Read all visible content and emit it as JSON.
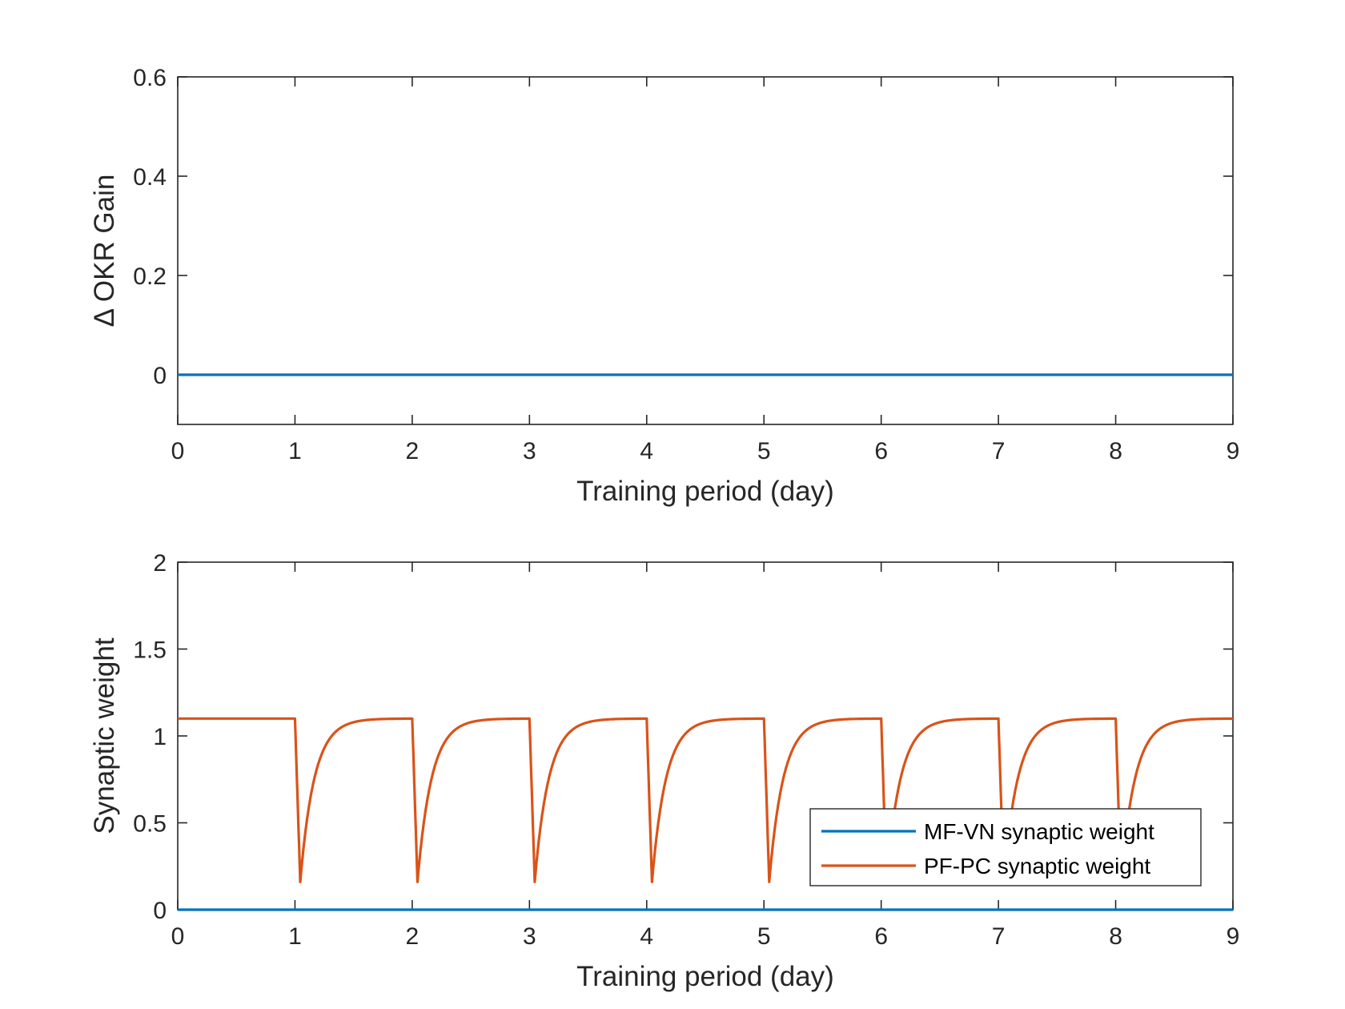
{
  "chart_data": [
    {
      "type": "line",
      "xlabel": "Training period (day)",
      "ylabel": "Δ OKR Gain",
      "xlim": [
        0,
        9
      ],
      "ylim": [
        -0.1,
        0.6
      ],
      "xticks": [
        "0",
        "1",
        "2",
        "3",
        "4",
        "5",
        "6",
        "7",
        "8",
        "9"
      ],
      "yticks": [
        "0",
        "0.2",
        "0.4",
        "0.6"
      ],
      "grid": false,
      "legend": null,
      "series": [
        {
          "color": "#0072BD",
          "x": [
            0,
            9
          ],
          "y": [
            0,
            0
          ]
        }
      ]
    },
    {
      "type": "line",
      "xlabel": "Training period (day)",
      "ylabel": "Synaptic weight",
      "xlim": [
        0,
        9
      ],
      "ylim": [
        0,
        2
      ],
      "xticks": [
        "0",
        "1",
        "2",
        "3",
        "4",
        "5",
        "6",
        "7",
        "8",
        "9"
      ],
      "yticks": [
        "0",
        "0.5",
        "1",
        "1.5",
        "2"
      ],
      "grid": false,
      "legend": "bottom-right",
      "series": [
        {
          "name": "MF-VN synaptic weight",
          "color": "#0072BD",
          "x": [
            0,
            9
          ],
          "y": [
            0,
            0
          ]
        },
        {
          "name": "PF-PC synaptic weight",
          "color": "#D95319",
          "baseline": 1.1,
          "dips": [
            {
              "day": 1,
              "min": 0.16
            },
            {
              "day": 2,
              "min": 0.16
            },
            {
              "day": 3,
              "min": 0.16
            },
            {
              "day": 4,
              "min": 0.16
            },
            {
              "day": 5,
              "min": 0.16
            },
            {
              "day": 6,
              "min": 0.16
            },
            {
              "day": 7,
              "min": 0.16
            },
            {
              "day": 8,
              "min": 0.16
            }
          ]
        }
      ]
    }
  ]
}
